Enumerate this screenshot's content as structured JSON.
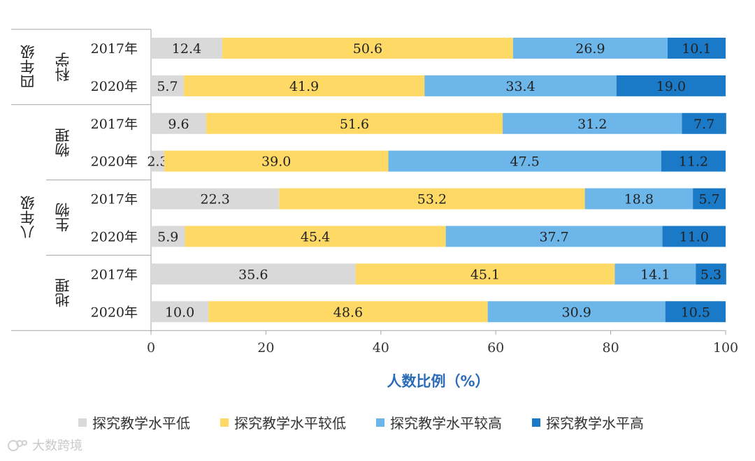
{
  "chart_data": {
    "type": "bar",
    "orientation": "horizontal",
    "stacked": true,
    "xlabel": "人数比例（%）",
    "xlim": [
      0,
      100
    ],
    "xticks": [
      "0",
      "20",
      "40",
      "60",
      "80",
      "100"
    ],
    "grid": false,
    "legend_position": "bottom",
    "grades": [
      {
        "label": "四年级",
        "subjects": [
          "科学"
        ]
      },
      {
        "label": "八年级",
        "subjects": [
          "物理",
          "生物",
          "地理"
        ]
      }
    ],
    "rows": [
      {
        "grade": "四年级",
        "subject": "科学",
        "year": "2017年"
      },
      {
        "grade": "四年级",
        "subject": "科学",
        "year": "2020年"
      },
      {
        "grade": "八年级",
        "subject": "物理",
        "year": "2017年"
      },
      {
        "grade": "八年级",
        "subject": "物理",
        "year": "2020年"
      },
      {
        "grade": "八年级",
        "subject": "生物",
        "year": "2017年"
      },
      {
        "grade": "八年级",
        "subject": "生物",
        "year": "2020年"
      },
      {
        "grade": "八年级",
        "subject": "地理",
        "year": "2017年"
      },
      {
        "grade": "八年级",
        "subject": "地理",
        "year": "2020年"
      }
    ],
    "series": [
      {
        "name": "探究教学水平低",
        "color": "#d9d9d9",
        "values": [
          12.4,
          5.7,
          9.6,
          2.3,
          22.3,
          5.9,
          35.6,
          10.0
        ],
        "labels": [
          "12.4",
          "5.7",
          "9.6",
          "2.3",
          "22.3",
          "5.9",
          "35.6",
          "10.0"
        ]
      },
      {
        "name": "探究教学水平较低",
        "color": "#ffd966",
        "values": [
          50.6,
          41.9,
          51.6,
          39.0,
          53.2,
          45.4,
          45.1,
          48.6
        ],
        "labels": [
          "50.6",
          "41.9",
          "51.6",
          "39.0",
          "53.2",
          "45.4",
          "45.1",
          "48.6"
        ]
      },
      {
        "name": "探究教学水平较高",
        "color": "#6db6ea",
        "values": [
          26.9,
          33.4,
          31.2,
          47.5,
          18.8,
          37.7,
          14.1,
          30.9
        ],
        "labels": [
          "26.9",
          "33.4",
          "31.2",
          "47.5",
          "18.8",
          "37.7",
          "14.1",
          "30.9"
        ]
      },
      {
        "name": "探究教学水平高",
        "color": "#1a7ac7",
        "values": [
          10.1,
          19.0,
          7.7,
          11.2,
          5.7,
          11.0,
          5.3,
          10.5
        ],
        "labels": [
          "10.1",
          "19.0",
          "7.7",
          "11.2",
          "5.7",
          "11.0",
          "5.3",
          "10.5"
        ]
      }
    ]
  },
  "watermark": "大数跨境"
}
